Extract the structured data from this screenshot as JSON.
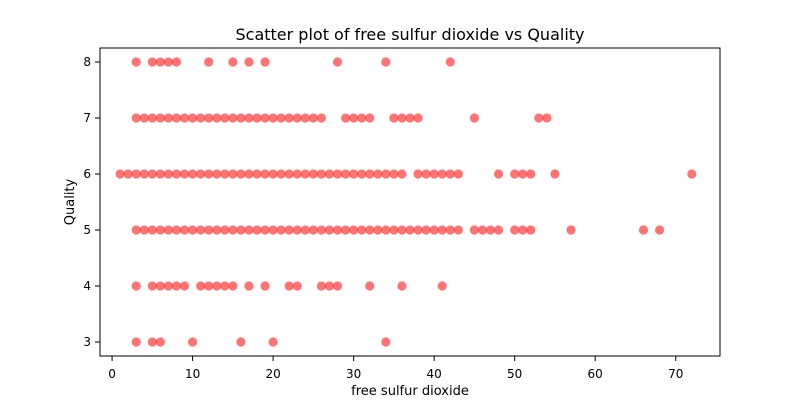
{
  "chart_data": {
    "type": "scatter",
    "title": "Scatter plot of free sulfur dioxide vs Quality",
    "xlabel": "free sulfur dioxide",
    "ylabel": "Quality",
    "xlim": [
      -1.5,
      75.5
    ],
    "ylim": [
      2.75,
      8.25
    ],
    "xticks": [
      0,
      10,
      20,
      30,
      40,
      50,
      60,
      70
    ],
    "yticks": [
      3,
      4,
      5,
      6,
      7,
      8
    ],
    "grid": false,
    "legend": "none",
    "marker_color": "#ff0000",
    "marker_alpha": 0.55,
    "series": [
      {
        "name": "free sulfur dioxide vs Quality",
        "points": [
          {
            "x": 3,
            "y": 8
          },
          {
            "x": 5,
            "y": 8
          },
          {
            "x": 6,
            "y": 8
          },
          {
            "x": 7,
            "y": 8
          },
          {
            "x": 8,
            "y": 8
          },
          {
            "x": 12,
            "y": 8
          },
          {
            "x": 15,
            "y": 8
          },
          {
            "x": 17,
            "y": 8
          },
          {
            "x": 19,
            "y": 8
          },
          {
            "x": 28,
            "y": 8
          },
          {
            "x": 34,
            "y": 8
          },
          {
            "x": 42,
            "y": 8
          },
          {
            "x": 3,
            "y": 7
          },
          {
            "x": 4,
            "y": 7
          },
          {
            "x": 5,
            "y": 7
          },
          {
            "x": 6,
            "y": 7
          },
          {
            "x": 7,
            "y": 7
          },
          {
            "x": 8,
            "y": 7
          },
          {
            "x": 9,
            "y": 7
          },
          {
            "x": 10,
            "y": 7
          },
          {
            "x": 11,
            "y": 7
          },
          {
            "x": 12,
            "y": 7
          },
          {
            "x": 13,
            "y": 7
          },
          {
            "x": 14,
            "y": 7
          },
          {
            "x": 15,
            "y": 7
          },
          {
            "x": 16,
            "y": 7
          },
          {
            "x": 17,
            "y": 7
          },
          {
            "x": 18,
            "y": 7
          },
          {
            "x": 19,
            "y": 7
          },
          {
            "x": 20,
            "y": 7
          },
          {
            "x": 21,
            "y": 7
          },
          {
            "x": 22,
            "y": 7
          },
          {
            "x": 23,
            "y": 7
          },
          {
            "x": 24,
            "y": 7
          },
          {
            "x": 25,
            "y": 7
          },
          {
            "x": 26,
            "y": 7
          },
          {
            "x": 29,
            "y": 7
          },
          {
            "x": 30,
            "y": 7
          },
          {
            "x": 31,
            "y": 7
          },
          {
            "x": 32,
            "y": 7
          },
          {
            "x": 35,
            "y": 7
          },
          {
            "x": 36,
            "y": 7
          },
          {
            "x": 37,
            "y": 7
          },
          {
            "x": 38,
            "y": 7
          },
          {
            "x": 45,
            "y": 7
          },
          {
            "x": 53,
            "y": 7
          },
          {
            "x": 54,
            "y": 7
          },
          {
            "x": 1,
            "y": 6
          },
          {
            "x": 2,
            "y": 6
          },
          {
            "x": 3,
            "y": 6
          },
          {
            "x": 4,
            "y": 6
          },
          {
            "x": 5,
            "y": 6
          },
          {
            "x": 6,
            "y": 6
          },
          {
            "x": 7,
            "y": 6
          },
          {
            "x": 8,
            "y": 6
          },
          {
            "x": 9,
            "y": 6
          },
          {
            "x": 10,
            "y": 6
          },
          {
            "x": 11,
            "y": 6
          },
          {
            "x": 12,
            "y": 6
          },
          {
            "x": 13,
            "y": 6
          },
          {
            "x": 14,
            "y": 6
          },
          {
            "x": 15,
            "y": 6
          },
          {
            "x": 16,
            "y": 6
          },
          {
            "x": 17,
            "y": 6
          },
          {
            "x": 18,
            "y": 6
          },
          {
            "x": 19,
            "y": 6
          },
          {
            "x": 20,
            "y": 6
          },
          {
            "x": 21,
            "y": 6
          },
          {
            "x": 22,
            "y": 6
          },
          {
            "x": 23,
            "y": 6
          },
          {
            "x": 24,
            "y": 6
          },
          {
            "x": 25,
            "y": 6
          },
          {
            "x": 26,
            "y": 6
          },
          {
            "x": 27,
            "y": 6
          },
          {
            "x": 28,
            "y": 6
          },
          {
            "x": 29,
            "y": 6
          },
          {
            "x": 30,
            "y": 6
          },
          {
            "x": 31,
            "y": 6
          },
          {
            "x": 32,
            "y": 6
          },
          {
            "x": 33,
            "y": 6
          },
          {
            "x": 34,
            "y": 6
          },
          {
            "x": 35,
            "y": 6
          },
          {
            "x": 36,
            "y": 6
          },
          {
            "x": 38,
            "y": 6
          },
          {
            "x": 39,
            "y": 6
          },
          {
            "x": 40,
            "y": 6
          },
          {
            "x": 41,
            "y": 6
          },
          {
            "x": 42,
            "y": 6
          },
          {
            "x": 43,
            "y": 6
          },
          {
            "x": 48,
            "y": 6
          },
          {
            "x": 50,
            "y": 6
          },
          {
            "x": 51,
            "y": 6
          },
          {
            "x": 52,
            "y": 6
          },
          {
            "x": 55,
            "y": 6
          },
          {
            "x": 72,
            "y": 6
          },
          {
            "x": 3,
            "y": 5
          },
          {
            "x": 4,
            "y": 5
          },
          {
            "x": 5,
            "y": 5
          },
          {
            "x": 6,
            "y": 5
          },
          {
            "x": 7,
            "y": 5
          },
          {
            "x": 8,
            "y": 5
          },
          {
            "x": 9,
            "y": 5
          },
          {
            "x": 10,
            "y": 5
          },
          {
            "x": 11,
            "y": 5
          },
          {
            "x": 12,
            "y": 5
          },
          {
            "x": 13,
            "y": 5
          },
          {
            "x": 14,
            "y": 5
          },
          {
            "x": 15,
            "y": 5
          },
          {
            "x": 16,
            "y": 5
          },
          {
            "x": 17,
            "y": 5
          },
          {
            "x": 18,
            "y": 5
          },
          {
            "x": 19,
            "y": 5
          },
          {
            "x": 20,
            "y": 5
          },
          {
            "x": 21,
            "y": 5
          },
          {
            "x": 22,
            "y": 5
          },
          {
            "x": 23,
            "y": 5
          },
          {
            "x": 24,
            "y": 5
          },
          {
            "x": 25,
            "y": 5
          },
          {
            "x": 26,
            "y": 5
          },
          {
            "x": 27,
            "y": 5
          },
          {
            "x": 28,
            "y": 5
          },
          {
            "x": 29,
            "y": 5
          },
          {
            "x": 30,
            "y": 5
          },
          {
            "x": 31,
            "y": 5
          },
          {
            "x": 32,
            "y": 5
          },
          {
            "x": 33,
            "y": 5
          },
          {
            "x": 34,
            "y": 5
          },
          {
            "x": 35,
            "y": 5
          },
          {
            "x": 36,
            "y": 5
          },
          {
            "x": 37,
            "y": 5
          },
          {
            "x": 38,
            "y": 5
          },
          {
            "x": 39,
            "y": 5
          },
          {
            "x": 40,
            "y": 5
          },
          {
            "x": 41,
            "y": 5
          },
          {
            "x": 42,
            "y": 5
          },
          {
            "x": 43,
            "y": 5
          },
          {
            "x": 45,
            "y": 5
          },
          {
            "x": 46,
            "y": 5
          },
          {
            "x": 47,
            "y": 5
          },
          {
            "x": 48,
            "y": 5
          },
          {
            "x": 50,
            "y": 5
          },
          {
            "x": 51,
            "y": 5
          },
          {
            "x": 52,
            "y": 5
          },
          {
            "x": 57,
            "y": 5
          },
          {
            "x": 66,
            "y": 5
          },
          {
            "x": 68,
            "y": 5
          },
          {
            "x": 3,
            "y": 4
          },
          {
            "x": 5,
            "y": 4
          },
          {
            "x": 6,
            "y": 4
          },
          {
            "x": 7,
            "y": 4
          },
          {
            "x": 8,
            "y": 4
          },
          {
            "x": 9,
            "y": 4
          },
          {
            "x": 11,
            "y": 4
          },
          {
            "x": 12,
            "y": 4
          },
          {
            "x": 13,
            "y": 4
          },
          {
            "x": 14,
            "y": 4
          },
          {
            "x": 15,
            "y": 4
          },
          {
            "x": 17,
            "y": 4
          },
          {
            "x": 19,
            "y": 4
          },
          {
            "x": 22,
            "y": 4
          },
          {
            "x": 23,
            "y": 4
          },
          {
            "x": 26,
            "y": 4
          },
          {
            "x": 27,
            "y": 4
          },
          {
            "x": 28,
            "y": 4
          },
          {
            "x": 32,
            "y": 4
          },
          {
            "x": 36,
            "y": 4
          },
          {
            "x": 41,
            "y": 4
          },
          {
            "x": 3,
            "y": 3
          },
          {
            "x": 5,
            "y": 3
          },
          {
            "x": 6,
            "y": 3
          },
          {
            "x": 10,
            "y": 3
          },
          {
            "x": 16,
            "y": 3
          },
          {
            "x": 20,
            "y": 3
          },
          {
            "x": 34,
            "y": 3
          }
        ]
      }
    ]
  }
}
